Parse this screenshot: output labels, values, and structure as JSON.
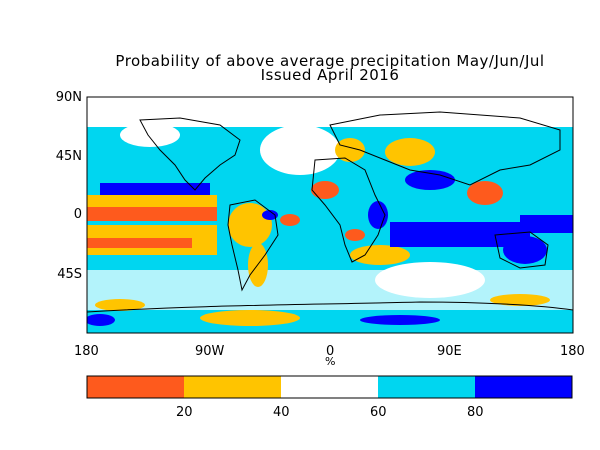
{
  "title_line1": "Probability of above average precipitation May/Jun/Jul",
  "title_line2": "Issued April 2016",
  "y_axis_labels": [
    "90N",
    "45N",
    "0",
    "45S"
  ],
  "x_axis_labels": [
    "180",
    "90W",
    "0",
    "90E",
    "180"
  ],
  "x_unit": "%",
  "colorbar": {
    "colors": [
      "#fe5a1d",
      "#ffc400",
      "#ffffff",
      "#00d6f0",
      "#0000ff"
    ],
    "tick_labels": [
      "20",
      "40",
      "60",
      "80"
    ]
  },
  "palette": {
    "very_low": "#fe5a1d",
    "low": "#ffc400",
    "neutral": "#ffffff",
    "high": "#00d6f0",
    "very_high": "#0000ff"
  }
}
